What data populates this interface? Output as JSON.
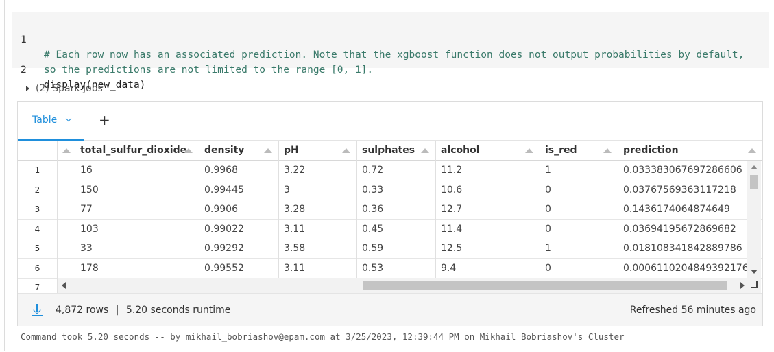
{
  "code": {
    "lines": [
      {
        "number": "1",
        "text": "# Each row now has an associated prediction. Note that the xgboost function does not output probabilities by default,",
        "kind": "comment"
      },
      {
        "number": "",
        "text": "so the predictions are not limited to the range [0, 1].",
        "kind": "comment"
      },
      {
        "number": "2",
        "text": "display(new_data)",
        "kind": "plain"
      }
    ]
  },
  "spark_jobs": {
    "label": "(2) Spark Jobs"
  },
  "tabs": {
    "table_label": "Table",
    "add_label": "+"
  },
  "table": {
    "columns": [
      "total_sulfur_dioxide",
      "density",
      "pH",
      "sulphates",
      "alcohol",
      "is_red",
      "prediction"
    ],
    "rows": [
      {
        "n": "1",
        "cells": [
          "16",
          "0.9968",
          "3.22",
          "0.72",
          "11.2",
          "1",
          "0.033383067697286606"
        ]
      },
      {
        "n": "2",
        "cells": [
          "150",
          "0.99445",
          "3",
          "0.33",
          "10.6",
          "0",
          "0.03767569363117218"
        ]
      },
      {
        "n": "3",
        "cells": [
          "77",
          "0.9906",
          "3.28",
          "0.36",
          "12.7",
          "0",
          "0.1436174064874649"
        ]
      },
      {
        "n": "4",
        "cells": [
          "103",
          "0.99022",
          "3.11",
          "0.45",
          "11.4",
          "0",
          "0.03694195672869682"
        ]
      },
      {
        "n": "5",
        "cells": [
          "33",
          "0.99292",
          "3.58",
          "0.59",
          "12.5",
          "1",
          "0.018108341842889786"
        ]
      },
      {
        "n": "6",
        "cells": [
          "178",
          "0.99552",
          "3.11",
          "0.53",
          "9.4",
          "0",
          "0.0006110204849392176"
        ]
      },
      {
        "n": "7",
        "cells": [
          "",
          "",
          "",
          "",
          "",
          "",
          ""
        ]
      }
    ]
  },
  "footer": {
    "rows": "4,872 rows",
    "separator": "|",
    "runtime": "5.20 seconds runtime",
    "refreshed": "Refreshed 56 minutes ago"
  },
  "command_note": "Command took 5.20 seconds -- by mikhail_bobriashov@epam.com at 3/25/2023, 12:39:44 PM on Mikhail Bobriashov's Cluster",
  "colors": {
    "accent": "#1f8fdc",
    "comment": "#3a7a6a"
  }
}
